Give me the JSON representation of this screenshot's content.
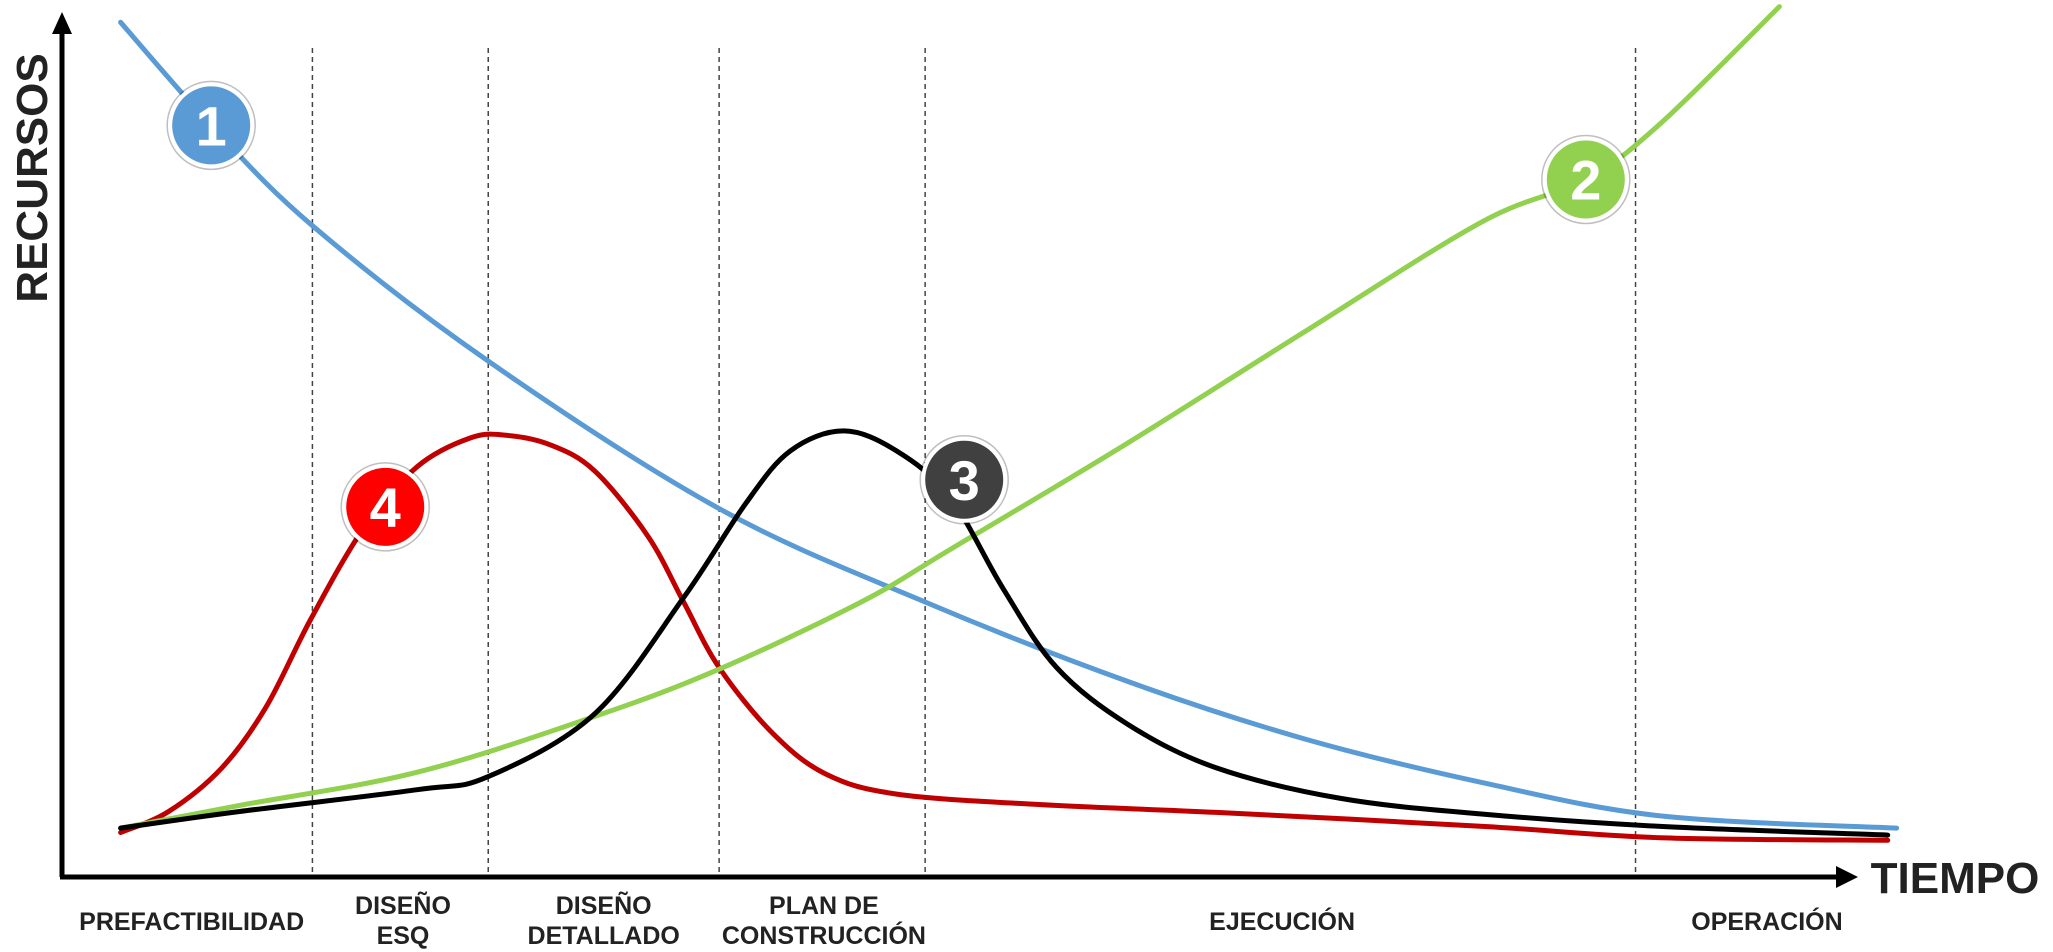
{
  "chart_data": {
    "type": "line",
    "title": "",
    "xlabel": "TIEMPO",
    "ylabel": "RECURSOS",
    "xlim": [
      0,
      100
    ],
    "ylim": [
      0,
      100
    ],
    "grid": false,
    "phase_boundaries": [
      14.1,
      24.0,
      37.0,
      48.6,
      88.6
    ],
    "phases": [
      {
        "lines": [
          "PREFACTIBILIDAD"
        ],
        "center": 7.3
      },
      {
        "lines": [
          "DISEÑO",
          "ESQ"
        ],
        "center": 19.2
      },
      {
        "lines": [
          "DISEÑO",
          "DETALLADO"
        ],
        "center": 30.5
      },
      {
        "lines": [
          "PLAN DE",
          "CONSTRUCCIÓN"
        ],
        "center": 42.9
      },
      {
        "lines": [
          "EJECUCIÓN"
        ],
        "center": 68.7
      },
      {
        "lines": [
          "OPERACIÓN"
        ],
        "center": 96.0
      }
    ],
    "series": [
      {
        "label": "1",
        "color": "#5b9bd5",
        "marker": {
          "x": 8.4,
          "y": 86.1
        },
        "x": [
          3.3,
          8.4,
          14.1,
          24.0,
          37.0,
          48.6,
          60,
          70,
          80,
          90,
          103.3
        ],
        "y": [
          97.9,
          86.1,
          74.6,
          59.1,
          42.2,
          31.5,
          22.4,
          15.8,
          10.8,
          7.0,
          5.6
        ]
      },
      {
        "label": "2",
        "color": "#92d050",
        "marker": {
          "x": 85.8,
          "y": 79.9
        },
        "x": [
          3.3,
          10,
          20,
          30,
          37,
          45,
          50,
          60,
          70,
          80,
          85.8,
          90,
          96.7
        ],
        "y": [
          5.6,
          8.2,
          12.0,
          18.4,
          23.8,
          31.5,
          37.5,
          49.7,
          62.5,
          75.1,
          79.9,
          86.3,
          99.7
        ]
      },
      {
        "label": "3",
        "color": "#000000",
        "marker": {
          "x": 50.8,
          "y": 45.5
        },
        "x": [
          3.3,
          10,
          20,
          24,
          30,
          35,
          38.5,
          41,
          44,
          47,
          50,
          53,
          56,
          60,
          65,
          72,
          80,
          90,
          102.8
        ],
        "y": [
          5.6,
          7.5,
          10.0,
          11.5,
          18.7,
          32.0,
          42.8,
          48.8,
          51.1,
          48.8,
          43.5,
          33.0,
          24.0,
          17.5,
          12.5,
          9.0,
          7.2,
          5.8,
          4.8
        ]
      },
      {
        "label": "4",
        "color": "#c00000",
        "marker": {
          "x": 18.2,
          "y": 42.4
        },
        "x": [
          3.3,
          6,
          9,
          11.5,
          14,
          17,
          20,
          23,
          25,
          27.5,
          30,
          33,
          35,
          37,
          40,
          43,
          47,
          55,
          65,
          80,
          90,
          102.8
        ],
        "y": [
          5.1,
          7.5,
          12.5,
          19.5,
          29.5,
          40.0,
          47.0,
          50.3,
          50.6,
          49.5,
          46.5,
          39.0,
          31.5,
          24.0,
          16.5,
          11.8,
          9.5,
          8.3,
          7.4,
          5.8,
          4.5,
          4.2
        ]
      }
    ]
  },
  "markers": [
    {
      "label": "1",
      "color": "#5b9bd5"
    },
    {
      "label": "2",
      "color": "#92d050"
    },
    {
      "label": "3",
      "color": "#404040"
    },
    {
      "label": "4",
      "color": "#ff0000"
    }
  ]
}
